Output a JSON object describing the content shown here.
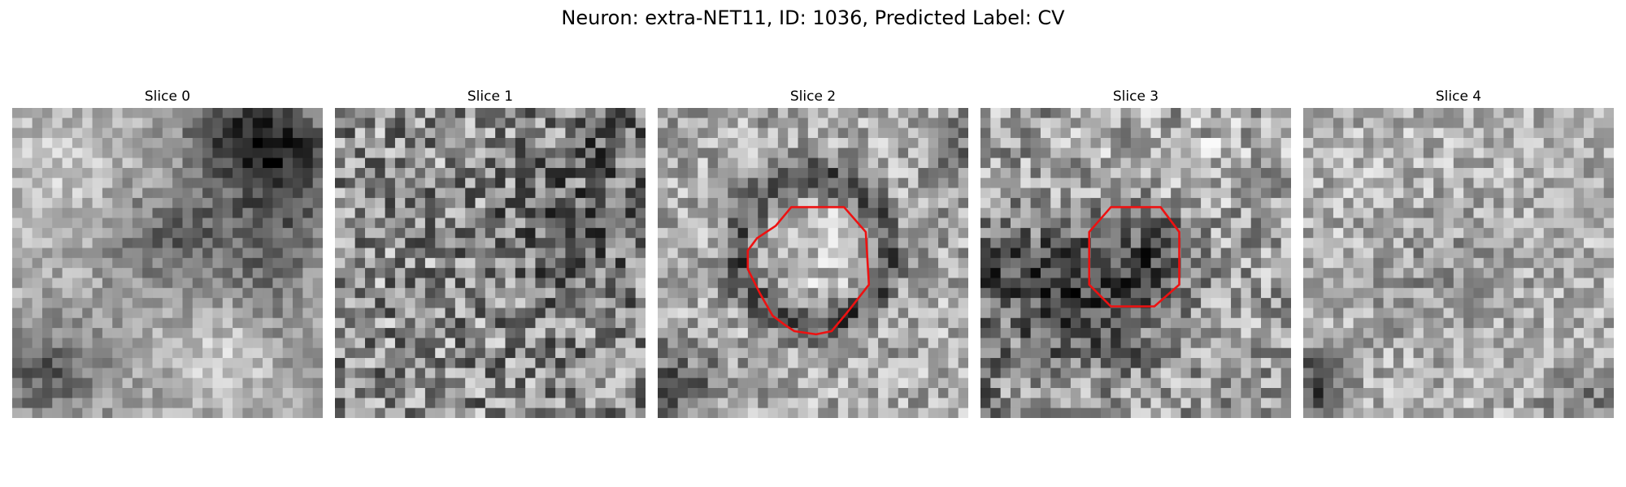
{
  "figure": {
    "title": "Neuron: extra-NET11, ID: 1036, Predicted Label: CV"
  },
  "panels": [
    {
      "title": "Slice 0",
      "has_outline": false
    },
    {
      "title": "Slice 1",
      "has_outline": false
    },
    {
      "title": "Slice 2",
      "has_outline": true
    },
    {
      "title": "Slice 3",
      "has_outline": true
    },
    {
      "title": "Slice 4",
      "has_outline": false
    }
  ],
  "colors": {
    "outline": "#ee1111",
    "background": "#ffffff"
  }
}
